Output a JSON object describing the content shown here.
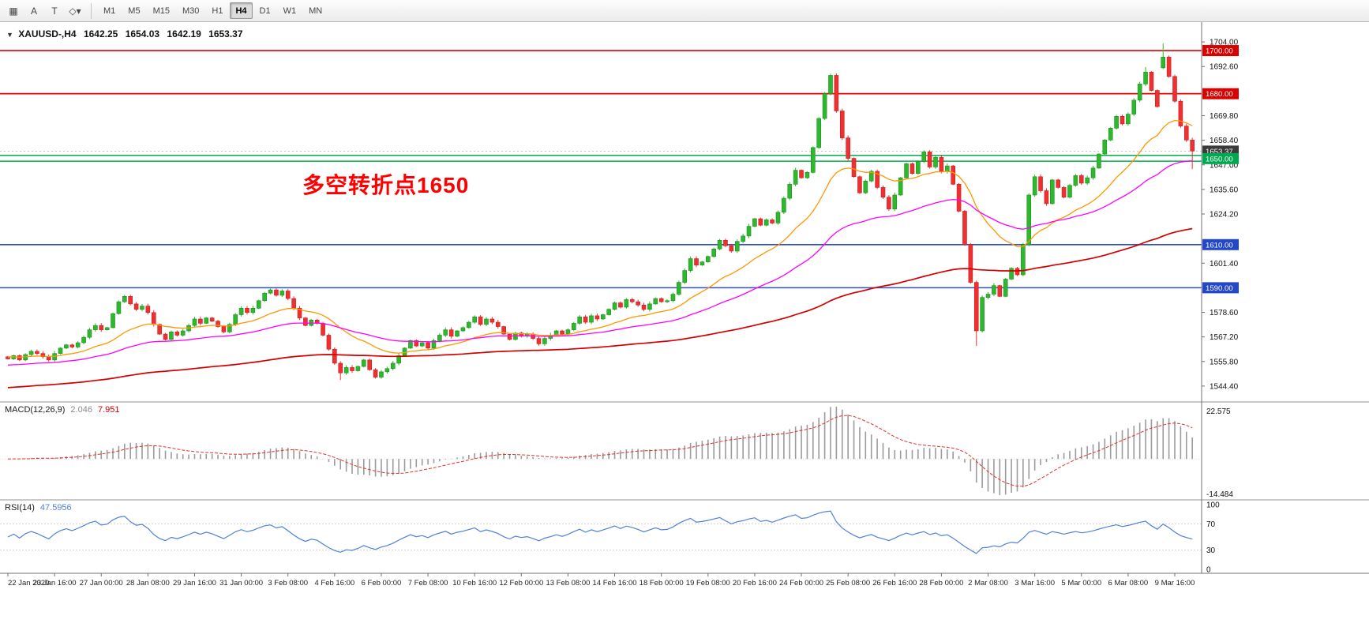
{
  "toolbar": {
    "icons": [
      {
        "name": "elements-grid-icon",
        "glyph": "▦"
      },
      {
        "name": "text-label-icon",
        "glyph": "A"
      },
      {
        "name": "text-box-icon",
        "glyph": "T"
      },
      {
        "name": "drawing-tools-dropdown-icon",
        "glyph": "◇▾"
      }
    ],
    "timeframes": [
      "M1",
      "M5",
      "M15",
      "M30",
      "H1",
      "H4",
      "D1",
      "W1",
      "MN"
    ],
    "active_timeframe": "H4"
  },
  "chart": {
    "title": {
      "symbol_period": "XAUUSD-,H4",
      "open": "1642.25",
      "high": "1654.03",
      "low": "1642.19",
      "close": "1653.37"
    },
    "annotation": {
      "text": "多空转折点1650",
      "color": "#ff0000"
    },
    "levels": {
      "red": [
        1700.0,
        1680.0
      ],
      "green": [
        1651.4,
        1648.7
      ],
      "blue": [
        1610.0,
        1590.0
      ],
      "current_price": 1653.37
    },
    "price_scale": {
      "plain_labels": [
        1704.0,
        1692.6,
        1669.8,
        1658.4,
        1647.0,
        1635.6,
        1624.2,
        1601.4,
        1578.6,
        1567.2,
        1555.8,
        1544.4
      ],
      "boxed_labels": [
        {
          "value": "1700.00",
          "price": 1700.0,
          "bg": "#d90000"
        },
        {
          "value": "1680.00",
          "price": 1680.0,
          "bg": "#d90000"
        },
        {
          "value": "1653.37",
          "price": 1653.37,
          "bg": "#3a3a3a"
        },
        {
          "value": "1650.00",
          "price": 1649.9,
          "bg": "#00a84f"
        },
        {
          "value": "1610.00",
          "price": 1610.0,
          "bg": "#2347c9"
        },
        {
          "value": "1590.00",
          "price": 1590.0,
          "bg": "#2347c9"
        }
      ]
    },
    "colors": {
      "candle_up": "#2db82d",
      "candle_down": "#f03030",
      "red_level": "#e00000",
      "green_level": "#00b050",
      "blue_level": "#2d4fd0"
    }
  },
  "chart_data": {
    "type": "candlestick",
    "symbol": "XAUUSD",
    "period": "H4",
    "first_open": 1558.0,
    "y_axis": {
      "top_value": 1713.2,
      "bottom_value": 1537.4
    },
    "closes": [
      1557.0,
      1558.5,
      1556.5,
      1559.0,
      1560.5,
      1559.5,
      1558.0,
      1556.5,
      1559.5,
      1562.0,
      1563.5,
      1562.5,
      1564.5,
      1567.0,
      1570.5,
      1572.5,
      1570.5,
      1571.5,
      1578.0,
      1583.5,
      1586.0,
      1582.5,
      1580.0,
      1581.5,
      1578.5,
      1573.0,
      1568.5,
      1566.0,
      1569.5,
      1568.0,
      1570.0,
      1572.5,
      1575.5,
      1573.5,
      1576.0,
      1574.5,
      1572.0,
      1569.5,
      1573.0,
      1577.5,
      1580.5,
      1578.5,
      1580.5,
      1584.0,
      1587.5,
      1589.0,
      1586.5,
      1588.5,
      1585.0,
      1580.5,
      1576.0,
      1572.5,
      1575.0,
      1573.5,
      1568.0,
      1561.5,
      1555.0,
      1550.5,
      1553.0,
      1551.5,
      1553.5,
      1556.5,
      1552.0,
      1548.5,
      1551.0,
      1552.5,
      1555.0,
      1558.5,
      1562.0,
      1565.5,
      1563.0,
      1564.5,
      1562.0,
      1565.5,
      1568.0,
      1570.5,
      1567.5,
      1570.0,
      1571.5,
      1574.0,
      1576.5,
      1573.0,
      1575.5,
      1574.0,
      1572.0,
      1568.5,
      1566.0,
      1569.0,
      1567.5,
      1568.5,
      1566.5,
      1564.0,
      1566.5,
      1568.0,
      1570.0,
      1568.5,
      1570.5,
      1573.5,
      1576.5,
      1574.0,
      1577.0,
      1575.5,
      1577.5,
      1580.0,
      1583.0,
      1581.0,
      1584.5,
      1583.5,
      1582.0,
      1580.0,
      1582.5,
      1585.0,
      1583.5,
      1584.0,
      1587.0,
      1592.5,
      1598.0,
      1603.5,
      1600.5,
      1602.0,
      1604.5,
      1608.0,
      1612.0,
      1609.5,
      1607.0,
      1611.5,
      1614.0,
      1618.5,
      1622.0,
      1619.0,
      1621.5,
      1620.0,
      1625.0,
      1631.5,
      1638.0,
      1644.5,
      1641.0,
      1643.5,
      1655.0,
      1668.5,
      1680.0,
      1688.5,
      1672.0,
      1659.5,
      1650.0,
      1641.5,
      1634.0,
      1639.5,
      1644.0,
      1636.5,
      1632.0,
      1626.5,
      1633.0,
      1641.0,
      1647.5,
      1643.0,
      1648.5,
      1653.0,
      1646.0,
      1650.5,
      1644.0,
      1646.5,
      1638.0,
      1625.5,
      1610.0,
      1592.5,
      1570.0,
      1585.5,
      1587.0,
      1591.0,
      1586.0,
      1594.0,
      1599.0,
      1596.0,
      1610.0,
      1633.0,
      1641.5,
      1635.0,
      1629.0,
      1640.0,
      1636.5,
      1632.0,
      1637.5,
      1642.0,
      1638.5,
      1641.0,
      1645.5,
      1652.0,
      1658.5,
      1664.0,
      1669.5,
      1666.0,
      1670.5,
      1677.0,
      1684.5,
      1690.0,
      1681.5,
      1674.0,
      1697.0,
      1688.0,
      1676.5,
      1665.0,
      1658.5,
      1653.4
    ],
    "wick_overrides": {
      "57": {
        "low": 1547.2
      },
      "141": {
        "high": 1689.3
      },
      "166": {
        "low": 1563.0
      },
      "195": {
        "high": 1692.4
      },
      "198": {
        "open": 1692.0,
        "high": 1703.3
      },
      "203": {
        "low": 1645.0
      }
    },
    "ohlc_display": {
      "open": 1642.25,
      "high": 1654.03,
      "low": 1642.19,
      "close": 1653.37
    },
    "moving_averages": [
      {
        "name": "fast",
        "color": "#ff9800",
        "alpha": 0.1,
        "seed": 1558.0
      },
      {
        "name": "medium",
        "color": "#ff00ff",
        "alpha": 0.04,
        "seed": 1554.0
      },
      {
        "name": "slow",
        "color": "#d40000",
        "alpha": 0.013,
        "seed": 1543.5
      }
    ],
    "indicators": {
      "macd": {
        "fast": 12,
        "slow": 26,
        "signal": 9
      },
      "rsi": {
        "period": 14
      }
    }
  },
  "macd": {
    "label": "MACD(12,26,9)",
    "value_main": "2.046",
    "value_signal": "7.951",
    "scale_labels": [
      "22.575",
      "-14.484"
    ]
  },
  "rsi": {
    "label": "RSI(14)",
    "value": "47.5956",
    "scale_labels": [
      "100",
      "70",
      "30",
      "0"
    ],
    "levels": [
      70,
      30
    ]
  },
  "time_axis": {
    "labels": [
      "22 Jan 2020",
      "23 Jan 16:00",
      "27 Jan 00:00",
      "28 Jan 08:00",
      "29 Jan 16:00",
      "31 Jan 00:00",
      "3 Feb 08:00",
      "4 Feb 16:00",
      "6 Feb 00:00",
      "7 Feb 08:00",
      "10 Feb 16:00",
      "12 Feb 00:00",
      "13 Feb 08:00",
      "14 Feb 16:00",
      "18 Feb 00:00",
      "19 Feb 08:00",
      "20 Feb 16:00",
      "24 Feb 00:00",
      "25 Feb 08:00",
      "26 Feb 16:00",
      "28 Feb 00:00",
      "2 Mar 08:00",
      "3 Mar 16:00",
      "5 Mar 00:00",
      "6 Mar 08:00",
      "9 Mar 16:00"
    ]
  }
}
